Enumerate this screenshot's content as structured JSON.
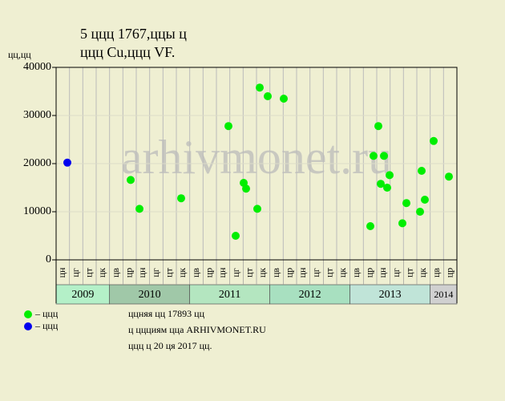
{
  "chart_data": {
    "type": "scatter",
    "title": "5 ццц 1767,ццы ц",
    "subtitle": "ццц Cu,ццц VF.",
    "ylabel": "цц,цц",
    "watermark": "arhivmonet.ru",
    "xlim": [
      0,
      30
    ],
    "ylim": [
      0,
      40000
    ],
    "yticks": [
      0,
      10000,
      20000,
      30000,
      40000
    ],
    "grid": true,
    "years": [
      {
        "label": "2009",
        "color": "#b4f0c8",
        "months": [
          "цн",
          "цг",
          "цт",
          "цк"
        ]
      },
      {
        "label": "2010",
        "color": "#a0c8a8",
        "months": [
          "цв",
          "цр",
          "цн",
          "цг",
          "цт",
          "цк"
        ]
      },
      {
        "label": "2011",
        "color": "#b4e6c0",
        "months": [
          "цв",
          "цр",
          "цн",
          "цг",
          "цт",
          "цк"
        ]
      },
      {
        "label": "2012",
        "color": "#a8e0c0",
        "months": [
          "цв",
          "цр",
          "цн",
          "цг",
          "цт",
          "цк"
        ]
      },
      {
        "label": "2013",
        "color": "#c0e4d8",
        "months": [
          "цв",
          "цр",
          "цн",
          "цг",
          "цт",
          "цк"
        ]
      },
      {
        "label": "2014",
        "color": "#d0d0d0",
        "months": [
          "цв",
          "цр"
        ]
      }
    ],
    "series": [
      {
        "name": "– ццц",
        "color": "#00ee00",
        "x": [
          5.58,
          6.24,
          9.36,
          12.9,
          13.44,
          14.04,
          14.22,
          15.06,
          15.24,
          15.84,
          17.04,
          23.52,
          23.76,
          24.12,
          24.3,
          24.54,
          24.78,
          24.96,
          25.92,
          26.22,
          27.24,
          27.36,
          27.6,
          28.26,
          29.4
        ],
        "values": [
          16600,
          10600,
          12800,
          27800,
          5000,
          16000,
          14800,
          10600,
          35800,
          34000,
          33500,
          7000,
          21600,
          27800,
          15800,
          21600,
          15000,
          17600,
          7600,
          11800,
          10000,
          18500,
          12500,
          24700,
          17300
        ]
      },
      {
        "name": "– ццц",
        "color": "#0000ee",
        "x": [
          0.84
        ],
        "values": [
          20200
        ]
      }
    ],
    "notes": [
      "ццняя цц 17893 цц",
      "ц ццциям цца ARHIVMONET.RU",
      "ццц ц 20 ця 2017 цц."
    ]
  }
}
